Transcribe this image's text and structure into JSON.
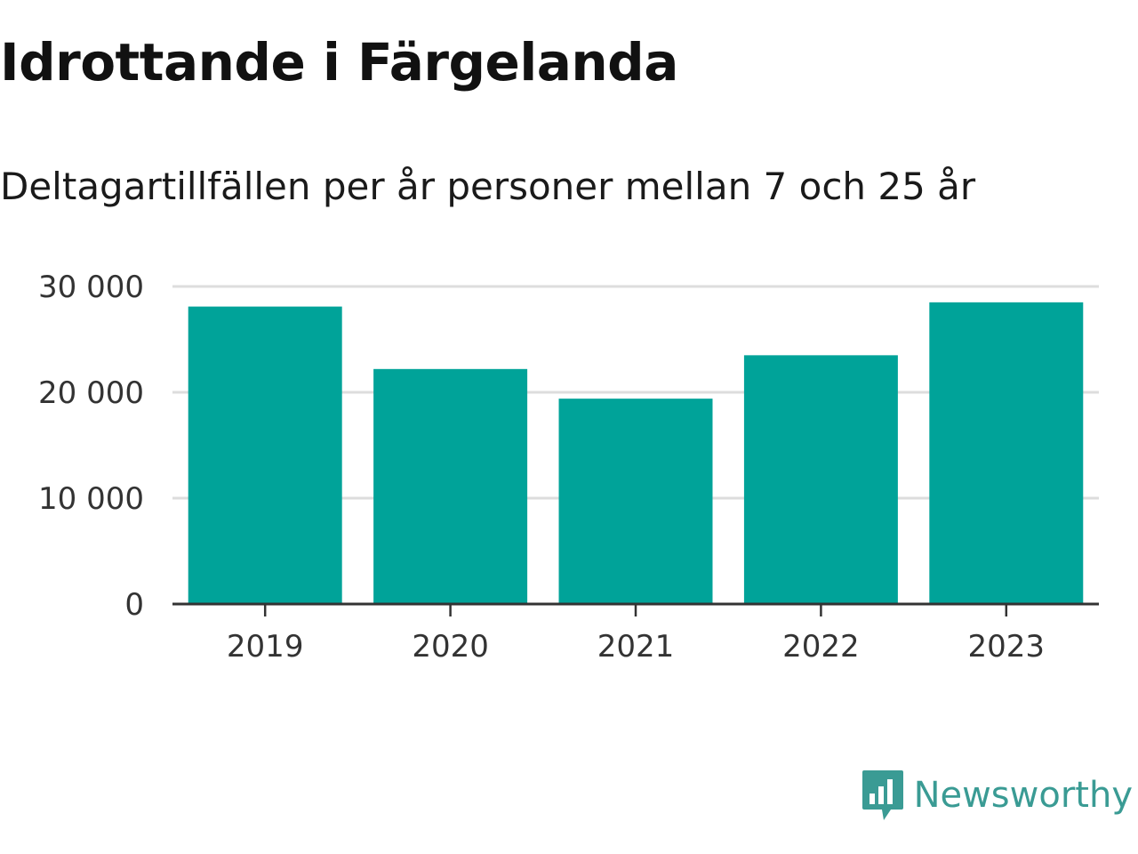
{
  "header": {
    "title": "Idrottande i Färgelanda",
    "subtitle": "Deltagartillfällen per år personer mellan 7 och 25 år"
  },
  "colors": {
    "bar": "#00a399",
    "grid": "#dddddd",
    "axis": "#333333",
    "brand": "#3a9b94"
  },
  "chart_data": {
    "type": "bar",
    "categories": [
      "2019",
      "2020",
      "2021",
      "2022",
      "2023"
    ],
    "values": [
      28100,
      22200,
      19400,
      23500,
      28500
    ],
    "ylim": [
      0,
      30000
    ],
    "yticks": [
      0,
      10000,
      20000,
      30000
    ],
    "ytick_labels": [
      "0",
      "10 000",
      "20 000",
      "30 000"
    ],
    "grid": true,
    "xlabel": "",
    "ylabel": ""
  },
  "footer": {
    "brand": "Newsworthy",
    "logo_icon": "newsworthy-bar-chart-icon"
  }
}
